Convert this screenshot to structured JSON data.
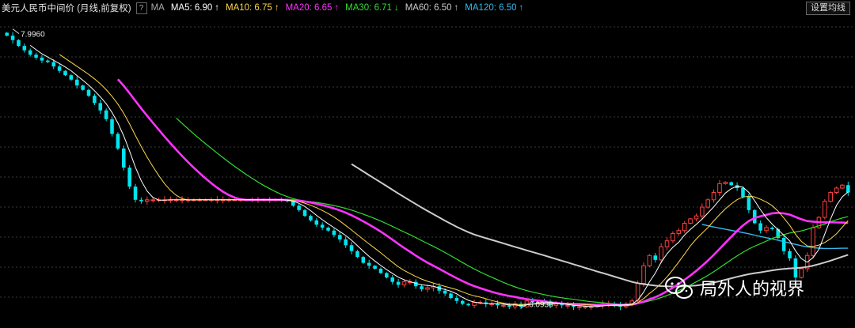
{
  "header": {
    "title": "美元人民币中间价 (月线,前复权)",
    "help_label": "?",
    "ma_label": "MA",
    "settings_label": "设置均线"
  },
  "colors": {
    "background": "#000000",
    "grid": "#3a3a3a",
    "candle_up": "#ff4040",
    "candle_down": "#00e5ee",
    "ma5": "#ffffff",
    "ma10": "#ffd84a",
    "ma20": "#ff33ff",
    "ma30": "#33dd33",
    "ma60": "#cccccc",
    "ma120": "#33bbee"
  },
  "watermark": {
    "icon": "wechat-icon",
    "text": "局外人的视界"
  },
  "chart_data": {
    "type": "candlestick",
    "ylim": [
      6.02,
      8.01
    ],
    "grid": true,
    "annotations": [
      {
        "label": "7.9960",
        "x_index": 1,
        "value": 7.996,
        "kind": "high"
      },
      {
        "label": "6.0930",
        "x_index": 88,
        "value": 6.093,
        "kind": "low"
      }
    ],
    "ma_legend": [
      {
        "name": "MA5",
        "value": "6.90",
        "trend": "up",
        "color": "#ffffff"
      },
      {
        "name": "MA10",
        "value": "6.75",
        "trend": "up",
        "color": "#ffd84a"
      },
      {
        "name": "MA20",
        "value": "6.65",
        "trend": "up",
        "color": "#ff33ff"
      },
      {
        "name": "MA30",
        "value": "6.71",
        "trend": "down",
        "color": "#33dd33"
      },
      {
        "name": "MA60",
        "value": "6.50",
        "trend": "up",
        "color": "#cccccc"
      },
      {
        "name": "MA120",
        "value": "6.50",
        "trend": "up",
        "color": "#33bbee"
      }
    ],
    "closes": [
      7.95,
      7.92,
      7.88,
      7.85,
      7.82,
      7.8,
      7.78,
      7.77,
      7.74,
      7.71,
      7.68,
      7.65,
      7.61,
      7.58,
      7.54,
      7.49,
      7.44,
      7.38,
      7.28,
      7.18,
      7.05,
      6.92,
      6.83,
      6.82,
      6.83,
      6.83,
      6.83,
      6.83,
      6.83,
      6.83,
      6.83,
      6.83,
      6.83,
      6.83,
      6.83,
      6.83,
      6.83,
      6.83,
      6.83,
      6.83,
      6.83,
      6.83,
      6.83,
      6.83,
      6.83,
      6.83,
      6.83,
      6.83,
      6.82,
      6.79,
      6.76,
      6.72,
      6.69,
      6.66,
      6.64,
      6.62,
      6.59,
      6.56,
      6.52,
      6.48,
      6.44,
      6.4,
      6.38,
      6.36,
      6.33,
      6.3,
      6.27,
      6.25,
      6.27,
      6.27,
      6.24,
      6.22,
      6.23,
      6.24,
      6.21,
      6.19,
      6.16,
      6.14,
      6.12,
      6.11,
      6.13,
      6.13,
      6.12,
      6.12,
      6.11,
      6.11,
      6.1,
      6.12,
      6.1,
      6.14,
      6.13,
      6.14,
      6.13,
      6.11,
      6.12,
      6.11,
      6.11,
      6.1,
      6.1,
      6.1,
      6.1,
      6.11,
      6.12,
      6.12,
      6.11,
      6.1,
      6.12,
      6.14,
      6.26,
      6.38,
      6.45,
      6.42,
      6.51,
      6.55,
      6.6,
      6.62,
      6.67,
      6.7,
      6.72,
      6.78,
      6.83,
      6.88,
      6.94,
      6.95,
      6.93,
      6.91,
      6.85,
      6.76,
      6.67,
      6.62,
      6.64,
      6.63,
      6.57,
      6.48,
      6.43,
      6.3,
      6.36,
      6.45,
      6.64,
      6.71,
      6.82,
      6.88,
      6.91,
      6.93,
      6.88
    ]
  }
}
